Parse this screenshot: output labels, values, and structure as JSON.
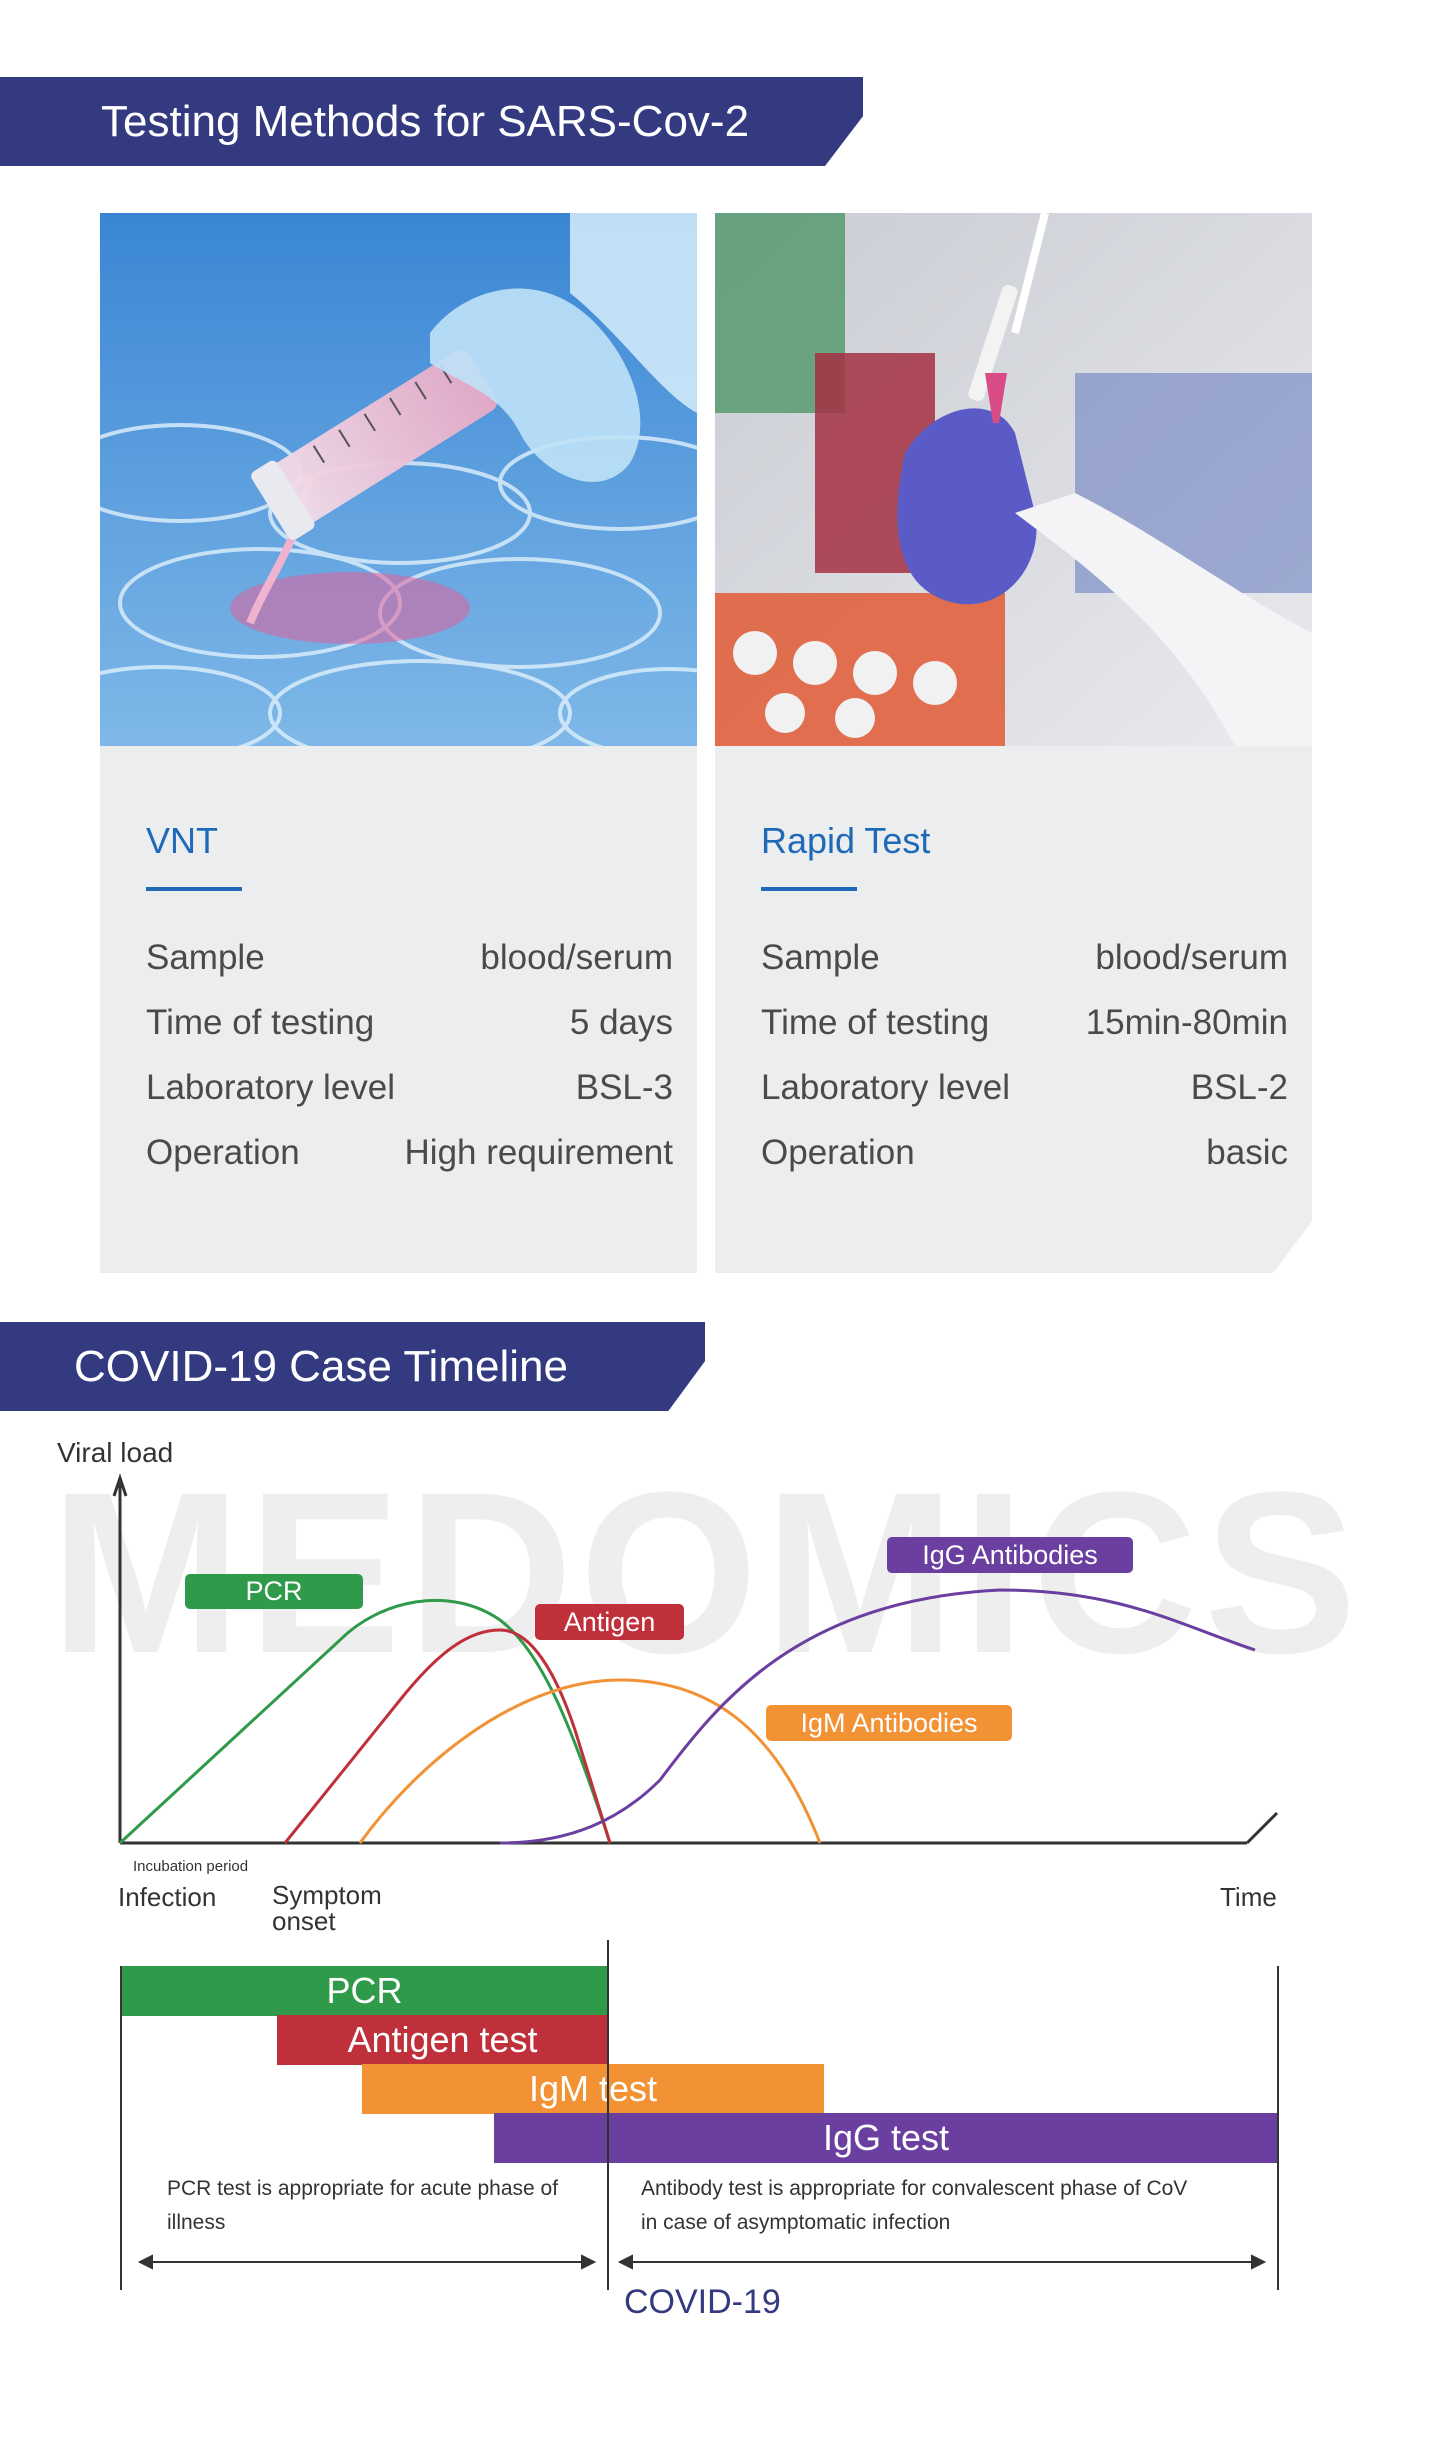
{
  "sections": {
    "methods_title": "Testing Methods for SARS-Cov-2",
    "timeline_title": "COVID-19 Case Timeline"
  },
  "cards": [
    {
      "title": "VNT",
      "rows": [
        {
          "label": "Sample",
          "value": "blood/serum"
        },
        {
          "label": "Time of testing",
          "value": "5 days"
        },
        {
          "label": "Laboratory level",
          "value": "BSL-3"
        },
        {
          "label": "Operation",
          "value": "High requirement"
        }
      ]
    },
    {
      "title": "Rapid Test",
      "rows": [
        {
          "label": "Sample",
          "value": "blood/serum"
        },
        {
          "label": "Time of testing",
          "value": "15min-80min"
        },
        {
          "label": "Laboratory level",
          "value": "BSL-2"
        },
        {
          "label": "Operation",
          "value": "basic"
        }
      ]
    }
  ],
  "timeline": {
    "watermark": "MEDOMICS",
    "y_axis_label": "Viral load",
    "x_axis_label": "Time",
    "incubation_label": "Incubation period",
    "infection_label": "Infection",
    "symptom_onset_label": "Symptom onset",
    "curves": [
      {
        "name": "PCR",
        "color": "#2e9a4a"
      },
      {
        "name": "Antigen",
        "color": "#c0303a"
      },
      {
        "name": "IgM Antibodies",
        "color": "#f29234"
      },
      {
        "name": "IgG Antibodies",
        "color": "#6b3fa0"
      }
    ],
    "bars": [
      {
        "label": "PCR",
        "color": "#2e9a4a"
      },
      {
        "label": "Antigen test",
        "color": "#c0303a"
      },
      {
        "label": "IgM test",
        "color": "#f29234"
      },
      {
        "label": "IgG test",
        "color": "#6b3fa0"
      }
    ],
    "note_left": "PCR test is appropriate for acute phase of illness",
    "note_right": "Antibody test is appropriate for convalescent phase of CoV in case of asymptomatic infection",
    "bottom_label": "COVID-19"
  }
}
